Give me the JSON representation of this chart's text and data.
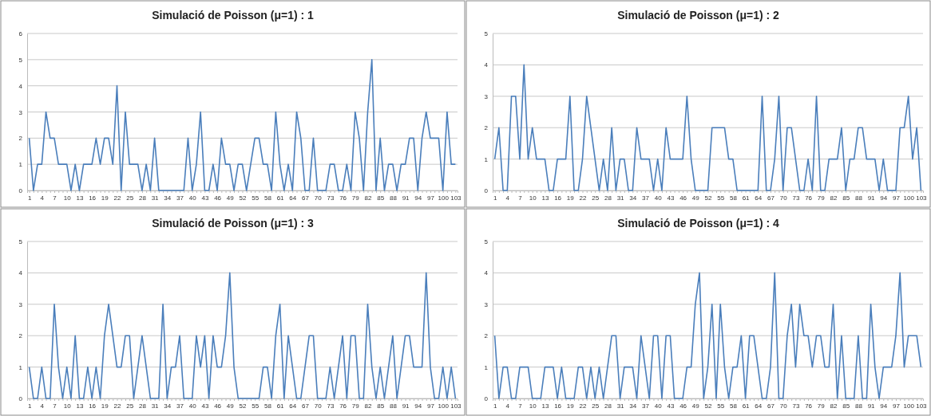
{
  "chart_data": [
    {
      "type": "line",
      "title": "Simulació de Poisson (μ=1) : 1",
      "categories": [
        "1",
        null,
        null,
        "4",
        null,
        null,
        "7",
        null,
        null,
        "10",
        null,
        null,
        "13",
        null,
        null,
        "16",
        null,
        null,
        "19",
        null,
        null,
        "22",
        null,
        null,
        "25",
        null,
        null,
        "28",
        null,
        null,
        "31",
        null,
        null,
        "34",
        null,
        null,
        "37",
        null,
        null,
        "40",
        null,
        null,
        "43",
        null,
        null,
        "46",
        null,
        null,
        "49",
        null,
        null,
        "52",
        null,
        null,
        "55",
        null,
        null,
        "58",
        null,
        null,
        "61",
        null,
        null,
        "64",
        null,
        null,
        "67",
        null,
        null,
        "70",
        null,
        null,
        "73",
        null,
        null,
        "76",
        null,
        null,
        "79",
        null,
        null,
        "82",
        null,
        null,
        "85",
        null,
        null,
        "88",
        null,
        null,
        "91",
        null,
        null,
        "94",
        null,
        null,
        "97",
        null,
        null,
        "100",
        null,
        null,
        "103"
      ],
      "series": [
        {
          "color": "#4a7ebb",
          "values": [
            2,
            0,
            1,
            1,
            3,
            2,
            2,
            1,
            1,
            1,
            0,
            1,
            0,
            1,
            1,
            1,
            2,
            1,
            2,
            2,
            1,
            4,
            0,
            3,
            1,
            1,
            1,
            0,
            1,
            0,
            2,
            0,
            0,
            0,
            0,
            0,
            0,
            0,
            2,
            0,
            1,
            3,
            0,
            0,
            1,
            0,
            2,
            1,
            1,
            0,
            1,
            1,
            0,
            1,
            2,
            2,
            1,
            1,
            0,
            3,
            1,
            0,
            1,
            0,
            3,
            2,
            0,
            0,
            2,
            0,
            0,
            0,
            1,
            1,
            0,
            0,
            1,
            0,
            3,
            2,
            0,
            3,
            5,
            0,
            2,
            0,
            1,
            1,
            0,
            1,
            1,
            2,
            2,
            0,
            2,
            3,
            2,
            2,
            2,
            0,
            3,
            1,
            1
          ]
        }
      ],
      "ylim": [
        0,
        6
      ],
      "yticks": [
        0,
        1,
        2,
        3,
        4,
        5,
        6
      ],
      "grid": "y"
    },
    {
      "type": "line",
      "title": "Simulació de Poisson (μ=1) : 2",
      "categories": [
        "1",
        null,
        null,
        "4",
        null,
        null,
        "7",
        null,
        null,
        "10",
        null,
        null,
        "13",
        null,
        null,
        "16",
        null,
        null,
        "19",
        null,
        null,
        "22",
        null,
        null,
        "25",
        null,
        null,
        "28",
        null,
        null,
        "31",
        null,
        null,
        "34",
        null,
        null,
        "37",
        null,
        null,
        "40",
        null,
        null,
        "43",
        null,
        null,
        "46",
        null,
        null,
        "49",
        null,
        null,
        "52",
        null,
        null,
        "55",
        null,
        null,
        "58",
        null,
        null,
        "61",
        null,
        null,
        "64",
        null,
        null,
        "67",
        null,
        null,
        "70",
        null,
        null,
        "73",
        null,
        null,
        "76",
        null,
        null,
        "79",
        null,
        null,
        "82",
        null,
        null,
        "85",
        null,
        null,
        "88",
        null,
        null,
        "91",
        null,
        null,
        "94",
        null,
        null,
        "97",
        null,
        null,
        "100",
        null,
        null,
        "103"
      ],
      "series": [
        {
          "color": "#4a7ebb",
          "values": [
            1,
            2,
            0,
            0,
            3,
            3,
            1,
            4,
            1,
            2,
            1,
            1,
            1,
            0,
            0,
            1,
            1,
            1,
            3,
            0,
            0,
            1,
            3,
            2,
            1,
            0,
            1,
            0,
            2,
            0,
            1,
            1,
            0,
            0,
            2,
            1,
            1,
            1,
            0,
            1,
            0,
            2,
            1,
            1,
            1,
            1,
            3,
            1,
            0,
            0,
            0,
            0,
            2,
            2,
            2,
            2,
            1,
            1,
            0,
            0,
            0,
            0,
            0,
            0,
            3,
            0,
            0,
            1,
            3,
            0,
            2,
            2,
            1,
            0,
            0,
            1,
            0,
            3,
            0,
            0,
            1,
            1,
            1,
            2,
            0,
            1,
            1,
            2,
            2,
            1,
            1,
            1,
            0,
            1,
            0,
            0,
            0,
            2,
            2,
            3,
            1,
            2,
            0
          ]
        }
      ],
      "ylim": [
        0,
        5
      ],
      "yticks": [
        0,
        1,
        2,
        3,
        4,
        5
      ],
      "grid": "y"
    },
    {
      "type": "line",
      "title": "Simulació de Poisson (μ=1) : 3",
      "categories": [
        "1",
        null,
        null,
        "4",
        null,
        null,
        "7",
        null,
        null,
        "10",
        null,
        null,
        "13",
        null,
        null,
        "16",
        null,
        null,
        "19",
        null,
        null,
        "22",
        null,
        null,
        "25",
        null,
        null,
        "28",
        null,
        null,
        "31",
        null,
        null,
        "34",
        null,
        null,
        "37",
        null,
        null,
        "40",
        null,
        null,
        "43",
        null,
        null,
        "46",
        null,
        null,
        "49",
        null,
        null,
        "52",
        null,
        null,
        "55",
        null,
        null,
        "58",
        null,
        null,
        "61",
        null,
        null,
        "64",
        null,
        null,
        "67",
        null,
        null,
        "70",
        null,
        null,
        "73",
        null,
        null,
        "76",
        null,
        null,
        "79",
        null,
        null,
        "82",
        null,
        null,
        "85",
        null,
        null,
        "88",
        null,
        null,
        "91",
        null,
        null,
        "94",
        null,
        null,
        "97",
        null,
        null,
        "100",
        null,
        null,
        "103"
      ],
      "series": [
        {
          "color": "#4a7ebb",
          "values": [
            1,
            0,
            0,
            1,
            0,
            0,
            3,
            1,
            0,
            1,
            0,
            2,
            0,
            0,
            1,
            0,
            1,
            0,
            2,
            3,
            2,
            1,
            1,
            2,
            2,
            0,
            1,
            2,
            1,
            0,
            0,
            0,
            3,
            0,
            1,
            1,
            2,
            0,
            0,
            0,
            2,
            1,
            2,
            0,
            2,
            1,
            1,
            2,
            4,
            1,
            0,
            0,
            0,
            0,
            0,
            0,
            1,
            1,
            0,
            2,
            3,
            0,
            2,
            1,
            0,
            0,
            1,
            2,
            2,
            0,
            0,
            0,
            1,
            0,
            1,
            2,
            0,
            2,
            2,
            0,
            0,
            3,
            1,
            0,
            1,
            0,
            1,
            2,
            0,
            1,
            2,
            2,
            1,
            1,
            1,
            4,
            1,
            0,
            0,
            1,
            0,
            1,
            0
          ]
        }
      ],
      "ylim": [
        0,
        5
      ],
      "yticks": [
        0,
        1,
        2,
        3,
        4,
        5
      ],
      "grid": "y"
    },
    {
      "type": "line",
      "title": "Simulació de Poisson (μ=1) : 4",
      "categories": [
        "1",
        null,
        null,
        "4",
        null,
        null,
        "7",
        null,
        null,
        "10",
        null,
        null,
        "13",
        null,
        null,
        "16",
        null,
        null,
        "19",
        null,
        null,
        "22",
        null,
        null,
        "25",
        null,
        null,
        "28",
        null,
        null,
        "31",
        null,
        null,
        "34",
        null,
        null,
        "37",
        null,
        null,
        "40",
        null,
        null,
        "43",
        null,
        null,
        "46",
        null,
        null,
        "49",
        null,
        null,
        "52",
        null,
        null,
        "55",
        null,
        null,
        "58",
        null,
        null,
        "61",
        null,
        null,
        "64",
        null,
        null,
        "67",
        null,
        null,
        "70",
        null,
        null,
        "73",
        null,
        null,
        "76",
        null,
        null,
        "79",
        null,
        null,
        "82",
        null,
        null,
        "85",
        null,
        null,
        "88",
        null,
        null,
        "91",
        null,
        null,
        "94",
        null,
        null,
        "97",
        null,
        null,
        "100",
        null,
        null,
        "103"
      ],
      "series": [
        {
          "color": "#4a7ebb",
          "values": [
            2,
            0,
            1,
            1,
            0,
            0,
            1,
            1,
            1,
            0,
            0,
            0,
            1,
            1,
            1,
            0,
            1,
            0,
            0,
            0,
            1,
            1,
            0,
            1,
            0,
            1,
            0,
            1,
            2,
            2,
            0,
            1,
            1,
            1,
            0,
            2,
            1,
            0,
            2,
            2,
            0,
            2,
            2,
            0,
            0,
            0,
            1,
            1,
            3,
            4,
            0,
            1,
            3,
            0,
            3,
            1,
            0,
            1,
            1,
            2,
            0,
            2,
            2,
            1,
            0,
            0,
            1,
            4,
            0,
            0,
            2,
            3,
            1,
            3,
            2,
            2,
            1,
            2,
            2,
            1,
            1,
            3,
            0,
            2,
            0,
            0,
            0,
            2,
            0,
            0,
            3,
            1,
            0,
            1,
            1,
            1,
            2,
            4,
            1,
            2,
            2,
            2,
            1
          ]
        }
      ],
      "ylim": [
        0,
        5
      ],
      "yticks": [
        0,
        1,
        2,
        3,
        4,
        5
      ],
      "grid": "y"
    }
  ]
}
